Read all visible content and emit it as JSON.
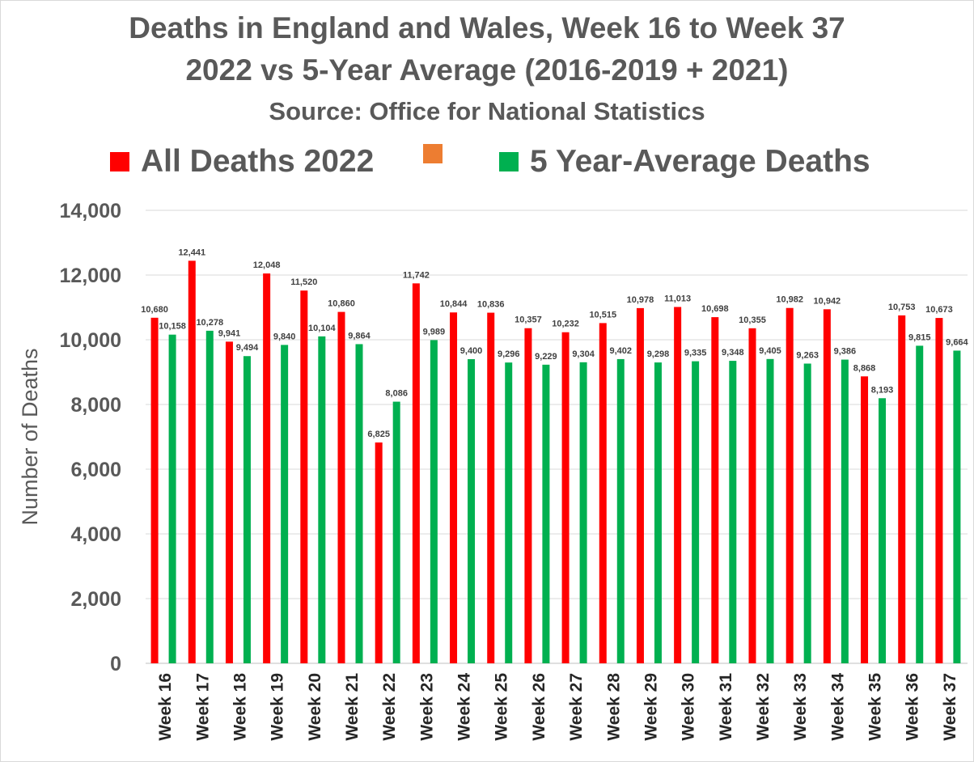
{
  "title_line1": "Deaths in England and Wales, Week 16 to Week 37",
  "title_line2": "2022 vs 5-Year Average (2016-2019 + 2021)",
  "subtitle": "Source: Office for National Statistics",
  "legend": [
    {
      "label": "All Deaths 2022",
      "color": "#ff0000"
    },
    {
      "label": "",
      "color": "#ed7d31"
    },
    {
      "label": "5 Year-Average Deaths",
      "color": "#00b050"
    }
  ],
  "chart_data": {
    "type": "bar",
    "title": "Deaths in England and Wales, Week 16 to Week 37",
    "subtitle": "2022 vs 5-Year Average (2016-2019 + 2021)",
    "ylabel": "Number of Deaths",
    "xlabel": "",
    "ylim": [
      0,
      14000
    ],
    "yticks": [
      "0",
      "2,000",
      "4,000",
      "6,000",
      "8,000",
      "10,000",
      "12,000",
      "14,000"
    ],
    "ytick_values": [
      0,
      2000,
      4000,
      6000,
      8000,
      10000,
      12000,
      14000
    ],
    "grid": true,
    "legend_position": "top",
    "categories": [
      "Week 16",
      "Week 17",
      "Week 18",
      "Week 19",
      "Week 20",
      "Week 21",
      "Week 22",
      "Week 23",
      "Week 24",
      "Week 25",
      "Week 26",
      "Week 27",
      "Week 28",
      "Week 29",
      "Week 30",
      "Week 31",
      "Week 32",
      "Week 33",
      "Week 34",
      "Week 35",
      "Week 36",
      "Week 37"
    ],
    "series": [
      {
        "name": "All Deaths 2022",
        "color": "#ff0000",
        "values": [
          10680,
          12441,
          9941,
          12048,
          11520,
          10860,
          6825,
          11742,
          10844,
          10836,
          10357,
          10232,
          10515,
          10978,
          11013,
          10698,
          10355,
          10982,
          10942,
          8868,
          10753,
          10673
        ],
        "labels": [
          "10,680",
          "12,441",
          "9,941",
          "12,048",
          "11,520",
          "10,860",
          "6,825",
          "11,742",
          "10,844",
          "10,836",
          "10,357",
          "10,232",
          "10,515",
          "10,978",
          "11,013",
          "10,698",
          "10,355",
          "10,982",
          "10,942",
          "8,868",
          "10,753",
          "10,673"
        ]
      },
      {
        "name": "5 Year-Average Deaths",
        "color": "#00b050",
        "values": [
          10158,
          10278,
          9494,
          9840,
          10104,
          9864,
          8086,
          9989,
          9400,
          9296,
          9229,
          9304,
          9402,
          9298,
          9335,
          9348,
          9405,
          9263,
          9386,
          8193,
          9815,
          9664
        ],
        "labels": [
          "10,158",
          "10,278",
          "9,494",
          "9,840",
          "10,104",
          "9,864",
          "8,086",
          "9,989",
          "9,400",
          "9,296",
          "9,229",
          "9,304",
          "9,402",
          "9,298",
          "9,335",
          "9,348",
          "9,405",
          "9,263",
          "9,386",
          "8,193",
          "9,815",
          "9,664"
        ]
      }
    ]
  }
}
